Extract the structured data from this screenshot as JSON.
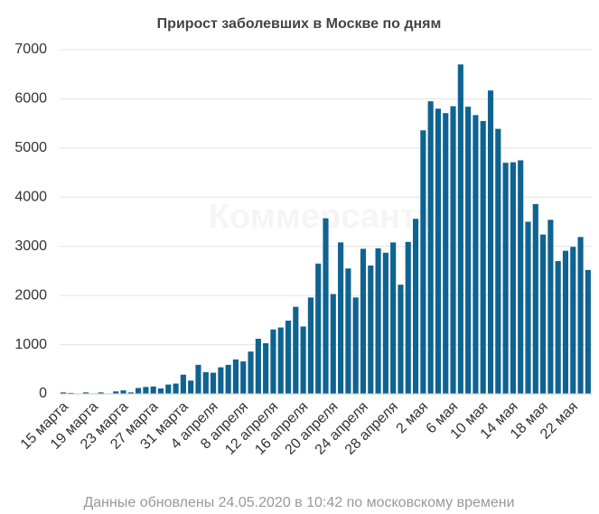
{
  "chart_data": {
    "type": "bar",
    "title": "Прирост заболевших в Москве по дням",
    "footnote": "Данные обновлены 24.05.2020 в 10:42 по московскому времени",
    "watermark": "Коммерсантъ",
    "color": "#0f6391",
    "categories": [
      "15 марта",
      null,
      null,
      null,
      "19 марта",
      null,
      null,
      null,
      "23 марта",
      null,
      null,
      null,
      "27 марта",
      null,
      null,
      null,
      "31 марта",
      null,
      null,
      null,
      "4 апреля",
      null,
      null,
      null,
      "8 апреля",
      null,
      null,
      null,
      "12 апреля",
      null,
      null,
      null,
      "16 апреля",
      null,
      null,
      null,
      "20 апреля",
      null,
      null,
      null,
      "24 апреля",
      null,
      null,
      null,
      "28 апреля",
      null,
      null,
      null,
      "2 мая",
      null,
      null,
      null,
      "6 мая",
      null,
      null,
      null,
      "10 мая",
      null,
      null,
      null,
      "14 мая",
      null,
      null,
      null,
      "18 мая",
      null,
      null,
      null,
      "22 мая",
      null,
      null
    ],
    "values": [
      30,
      20,
      5,
      30,
      10,
      30,
      10,
      50,
      70,
      30,
      120,
      140,
      150,
      110,
      190,
      210,
      390,
      270,
      590,
      440,
      430,
      540,
      590,
      700,
      660,
      860,
      1120,
      1030,
      1310,
      1350,
      1490,
      1770,
      1370,
      1960,
      2650,
      3570,
      2030,
      3080,
      2550,
      1960,
      2950,
      2610,
      2960,
      2870,
      3080,
      2220,
      3090,
      3560,
      5360,
      5950,
      5800,
      5710,
      5850,
      6700,
      5840,
      5670,
      5550,
      6170,
      5390,
      4700,
      4710,
      4750,
      3500,
      3860,
      3240,
      3540,
      2700,
      2910,
      2990,
      3190,
      2520
    ],
    "ylim": [
      0,
      7000
    ],
    "yticks": [
      0,
      1000,
      2000,
      3000,
      4000,
      5000,
      6000,
      7000
    ],
    "grid": true
  }
}
